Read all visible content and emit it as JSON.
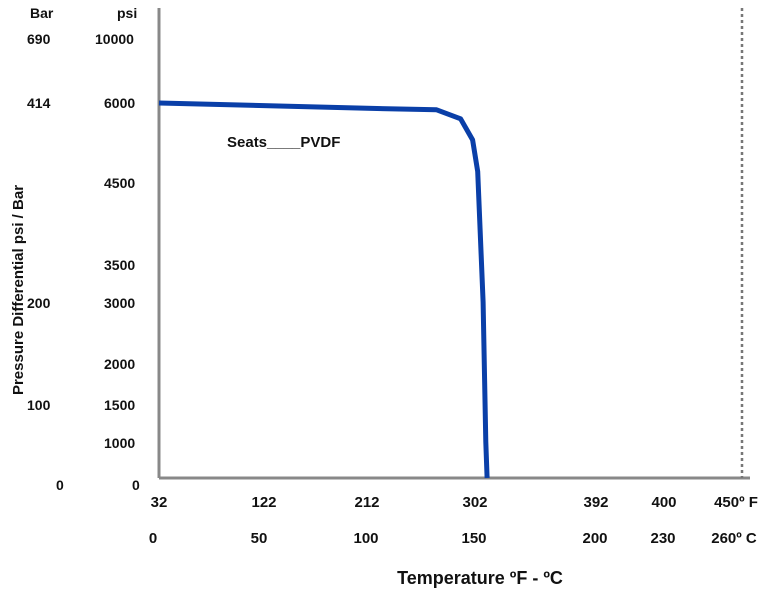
{
  "chart_data": {
    "type": "line",
    "xlabel": "Temperature ºF - ºC",
    "ylabel": "Pressure Differential psi / Bar",
    "y_unit_labels": {
      "bar": "Bar",
      "psi": "psi"
    },
    "x_ticks_f": [
      "32",
      "122",
      "212",
      "302",
      "392",
      "400",
      "450º F"
    ],
    "x_ticks_c": [
      "0",
      "50",
      "100",
      "150",
      "200",
      "230",
      "260º C"
    ],
    "y_ticks_psi": [
      "10000",
      "6000",
      "4500",
      "3500",
      "3000",
      "2000",
      "1500",
      "1000",
      "0"
    ],
    "y_ticks_bar": [
      "690",
      "414",
      "200",
      "100",
      "0"
    ],
    "xlim_f": [
      32,
      450
    ],
    "ylim_psi": [
      0,
      10000
    ],
    "grid": false,
    "reference_line": {
      "style": "dotted",
      "position": "450º F / 260º C"
    },
    "series": [
      {
        "name": "Seats____PVDF",
        "color": "#0a3fa8",
        "x": [
          32,
          122,
          212,
          270,
          290,
          300,
          304,
          308,
          310,
          311
        ],
        "y": [
          6000,
          5950,
          5900,
          5870,
          5700,
          5300,
          4700,
          3000,
          1000,
          0
        ]
      }
    ]
  }
}
